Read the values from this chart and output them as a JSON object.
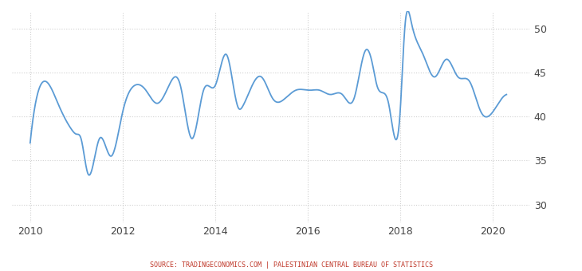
{
  "title": "",
  "source_text": "SOURCE: TRADINGECONOMICS.COM | PALESTINIAN CENTRAL BUREAU OF STATISTICS",
  "line_color": "#5b9bd5",
  "background_color": "#ffffff",
  "grid_color": "#d0d0d0",
  "ylim": [
    28,
    52
  ],
  "yticks": [
    30,
    35,
    40,
    45,
    50
  ],
  "xlim_start": 2009.6,
  "xlim_end": 2020.8,
  "xtick_labels": [
    "2010",
    "2012",
    "2014",
    "2016",
    "2018",
    "2020"
  ],
  "xtick_positions": [
    2010,
    2012,
    2014,
    2016,
    2018,
    2020
  ],
  "data": [
    [
      2010.0,
      37.0
    ],
    [
      2010.3,
      44.0
    ],
    [
      2010.6,
      41.5
    ],
    [
      2010.9,
      38.5
    ],
    [
      2011.0,
      38.0
    ],
    [
      2011.1,
      37.5
    ],
    [
      2011.25,
      33.5
    ],
    [
      2011.5,
      37.5
    ],
    [
      2011.75,
      35.5
    ],
    [
      2012.0,
      40.5
    ],
    [
      2012.25,
      43.5
    ],
    [
      2012.5,
      43.0
    ],
    [
      2012.75,
      41.5
    ],
    [
      2013.0,
      43.5
    ],
    [
      2013.25,
      43.5
    ],
    [
      2013.5,
      37.5
    ],
    [
      2013.75,
      43.0
    ],
    [
      2014.0,
      43.5
    ],
    [
      2014.25,
      47.0
    ],
    [
      2014.5,
      41.0
    ],
    [
      2014.6,
      41.2
    ],
    [
      2015.0,
      44.5
    ],
    [
      2015.25,
      42.0
    ],
    [
      2015.5,
      42.0
    ],
    [
      2015.75,
      43.0
    ],
    [
      2016.0,
      43.0
    ],
    [
      2016.1,
      43.0
    ],
    [
      2016.25,
      43.0
    ],
    [
      2016.5,
      42.5
    ],
    [
      2016.75,
      42.5
    ],
    [
      2017.0,
      42.0
    ],
    [
      2017.25,
      47.5
    ],
    [
      2017.4,
      46.0
    ],
    [
      2017.5,
      43.5
    ],
    [
      2017.75,
      41.5
    ],
    [
      2018.0,
      40.5
    ],
    [
      2018.1,
      50.0
    ],
    [
      2018.25,
      50.5
    ],
    [
      2018.5,
      47.0
    ],
    [
      2018.75,
      44.5
    ],
    [
      2019.0,
      46.5
    ],
    [
      2019.25,
      44.5
    ],
    [
      2019.5,
      44.0
    ],
    [
      2019.75,
      40.5
    ],
    [
      2020.0,
      40.5
    ],
    [
      2020.3,
      42.5
    ]
  ]
}
